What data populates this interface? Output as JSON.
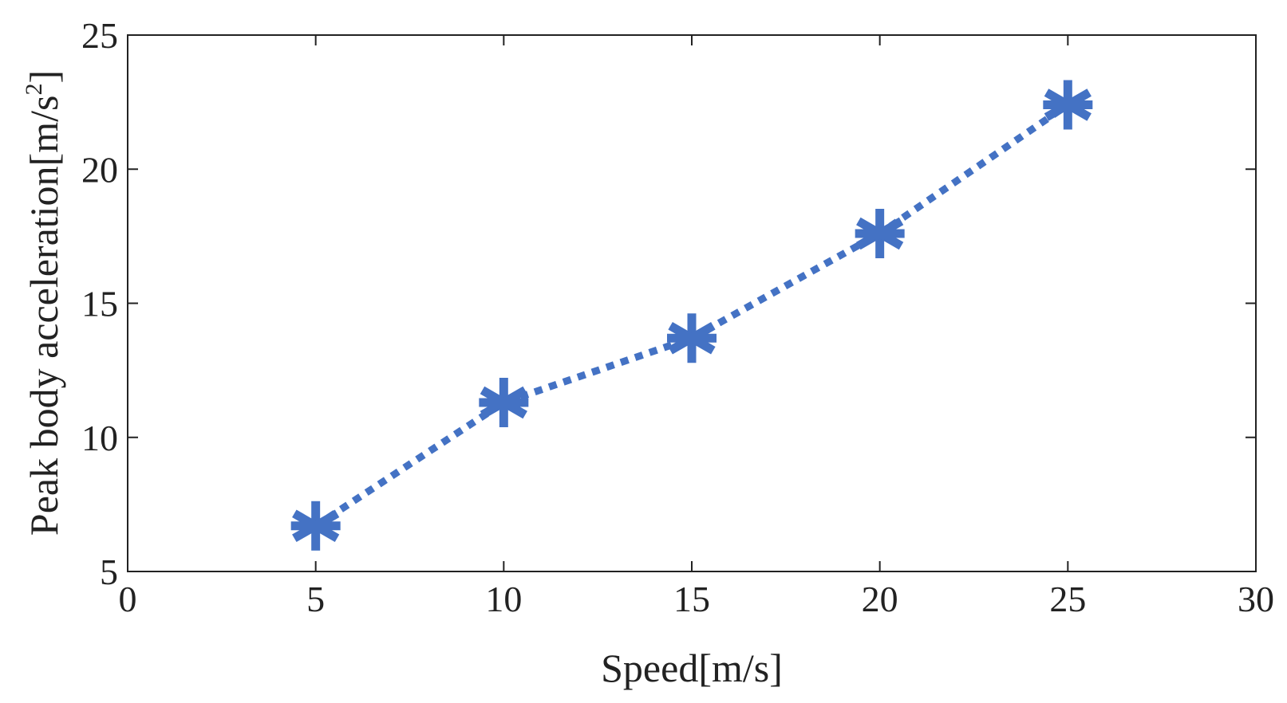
{
  "chart_data": {
    "type": "line",
    "title": "",
    "xlabel": "Speed[m/s]",
    "ylabel": "Peak body acceleration[m/s",
    "ylabel_superscript": "2",
    "ylabel_suffix": "]",
    "xlim": [
      0,
      30
    ],
    "ylim": [
      5,
      25
    ],
    "xticks": [
      0,
      5,
      10,
      15,
      20,
      25,
      30
    ],
    "yticks": [
      5,
      10,
      15,
      20,
      25
    ],
    "grid": false,
    "series": [
      {
        "name": "Peak body acceleration",
        "x": [
          5,
          10,
          15,
          20,
          25
        ],
        "y": [
          6.7,
          11.3,
          13.7,
          17.6,
          22.4
        ],
        "line_style": "dotted",
        "marker": "asterisk",
        "color": "#4472C4"
      }
    ]
  }
}
